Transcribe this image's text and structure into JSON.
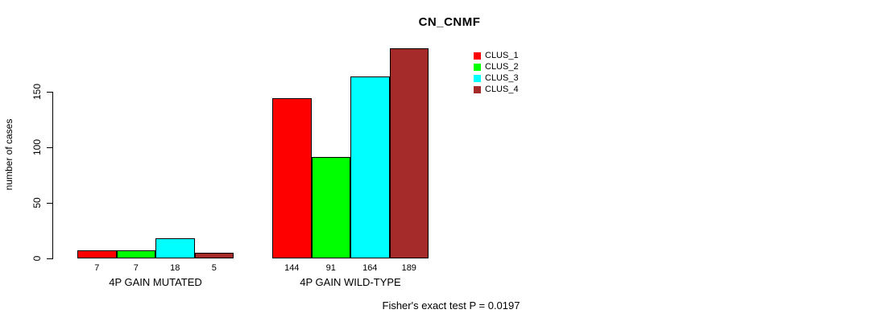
{
  "chart_data": {
    "type": "bar",
    "title": "CN_CNMF",
    "ylabel": "number of cases",
    "xlabel": "",
    "ylim": [
      0,
      150
    ],
    "yticks": [
      0,
      50,
      100,
      150
    ],
    "grid": false,
    "legend_position": "top-right",
    "categories": [
      "4P GAIN MUTATED",
      "4P GAIN WILD-TYPE"
    ],
    "series": [
      {
        "name": "CLUS_1",
        "color": "#FF0000",
        "values": [
          7,
          144
        ]
      },
      {
        "name": "CLUS_2",
        "color": "#00FF00",
        "values": [
          7,
          91
        ]
      },
      {
        "name": "CLUS_3",
        "color": "#00FFFF",
        "values": [
          18,
          164
        ]
      },
      {
        "name": "CLUS_4",
        "color": "#A52A2A",
        "values": [
          5,
          189
        ]
      }
    ],
    "bar_value_labels": [
      [
        "7",
        "7",
        "18",
        "5"
      ],
      [
        "144",
        "91",
        "164",
        "189"
      ]
    ],
    "annotation": "Fisher's exact test P = 0.0197"
  }
}
